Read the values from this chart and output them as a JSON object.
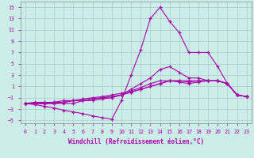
{
  "xlabel": "Windchill (Refroidissement éolien,°C)",
  "ylabel": "",
  "xlim": [
    -0.5,
    23.5
  ],
  "ylim": [
    -5.5,
    16
  ],
  "yticks": [
    -5,
    -3,
    -1,
    1,
    3,
    5,
    7,
    9,
    11,
    13,
    15
  ],
  "xticks": [
    0,
    1,
    2,
    3,
    4,
    5,
    6,
    7,
    8,
    9,
    10,
    11,
    12,
    13,
    14,
    15,
    16,
    17,
    18,
    19,
    20,
    21,
    22,
    23
  ],
  "bg_color": "#cceee8",
  "grid_color": "#aacccc",
  "line_color": "#aa00aa",
  "lines": [
    {
      "x": [
        0,
        1,
        2,
        3,
        4,
        5,
        6,
        7,
        8,
        9,
        10,
        11,
        12,
        13,
        14,
        15,
        16,
        17,
        18,
        19,
        20,
        21,
        22,
        23
      ],
      "y": [
        -2,
        -2.2,
        -2.5,
        -2.8,
        -3.2,
        -3.5,
        -3.8,
        -4.2,
        -4.5,
        -4.8,
        -1.5,
        3,
        7.5,
        13,
        15,
        12.5,
        10.5,
        7,
        7,
        7,
        4.5,
        1.5,
        -0.5,
        -0.8
      ]
    },
    {
      "x": [
        0,
        1,
        2,
        3,
        4,
        5,
        6,
        7,
        8,
        9,
        10,
        11,
        12,
        13,
        14,
        15,
        16,
        17,
        18,
        19,
        20,
        21,
        22,
        23
      ],
      "y": [
        -2,
        -2,
        -2,
        -2,
        -2,
        -2,
        -1.5,
        -1.5,
        -1.2,
        -1,
        -0.5,
        0.5,
        1.5,
        2.5,
        4,
        4.5,
        3.5,
        2.5,
        2.5,
        2,
        2,
        1.5,
        -0.5,
        -0.8
      ]
    },
    {
      "x": [
        0,
        1,
        2,
        3,
        4,
        5,
        6,
        7,
        8,
        9,
        10,
        11,
        12,
        13,
        14,
        15,
        16,
        17,
        18,
        19,
        20,
        21,
        22,
        23
      ],
      "y": [
        -2,
        -2,
        -2,
        -2,
        -1.8,
        -1.5,
        -1.5,
        -1.2,
        -1,
        -0.8,
        -0.5,
        0,
        0.5,
        1,
        1.5,
        2,
        2,
        2,
        2,
        2,
        2,
        1.5,
        -0.5,
        -0.8
      ]
    },
    {
      "x": [
        0,
        1,
        2,
        3,
        4,
        5,
        6,
        7,
        8,
        9,
        10,
        11,
        12,
        13,
        14,
        15,
        16,
        17,
        18,
        19,
        20,
        21,
        22,
        23
      ],
      "y": [
        -2,
        -2,
        -2,
        -1.8,
        -1.8,
        -1.5,
        -1.5,
        -1.2,
        -1,
        -0.8,
        -0.5,
        0,
        0.5,
        1,
        1.5,
        2,
        2,
        1.8,
        2,
        2,
        2,
        1.5,
        -0.5,
        -0.8
      ]
    },
    {
      "x": [
        0,
        1,
        2,
        3,
        4,
        5,
        6,
        7,
        8,
        9,
        10,
        11,
        12,
        13,
        14,
        15,
        16,
        17,
        18,
        19,
        20,
        21,
        22,
        23
      ],
      "y": [
        -2,
        -1.8,
        -1.8,
        -1.8,
        -1.5,
        -1.5,
        -1.2,
        -1,
        -0.8,
        -0.5,
        -0.2,
        0.2,
        0.8,
        1.5,
        2,
        2,
        1.8,
        1.5,
        1.8,
        2,
        2,
        1.5,
        -0.5,
        -0.8
      ]
    }
  ]
}
